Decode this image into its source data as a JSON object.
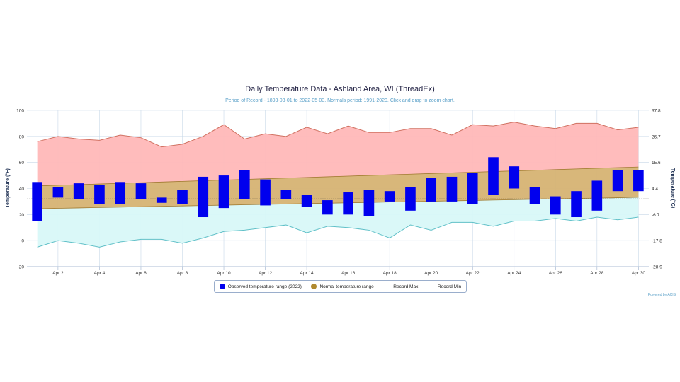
{
  "title": "Daily Temperature Data - Ashland Area, WI (ThreadEx)",
  "subtitle": "Period of Record - 1893-03-01 to 2022-05-03. Normals period: 1991-2020. Click and drag to zoom chart.",
  "credits": "Powered by ACIS",
  "legend": {
    "observed": "Observed temperature range (2022)",
    "normal": "Normal temperature range",
    "record_max": "Record Max",
    "record_min": "Record Min"
  },
  "colors": {
    "observed": "#0000ee",
    "normal_fill": "#d6b373",
    "normal_dot": "#b08a30",
    "record_max_fill": "#ffb8b8",
    "record_max_line": "#d07060",
    "record_min_fill": "#d8f8f8",
    "record_min_line": "#60c0c8",
    "grid": "#c8d8e8"
  },
  "chart_data": {
    "type": "area",
    "grid": true,
    "legend_position": "bottom",
    "x_tick_labels": [
      "Apr 2",
      "Apr 4",
      "Apr 6",
      "Apr 8",
      "Apr 10",
      "Apr 12",
      "Apr 14",
      "Apr 16",
      "Apr 18",
      "Apr 20",
      "Apr 22",
      "Apr 24",
      "Apr 26",
      "Apr 28",
      "Apr 30"
    ],
    "ylabel": "Temperature (°F)",
    "ylabel_right": "Temperature (°C)",
    "ylim": [
      -20,
      100
    ],
    "y_ticks": [
      -20,
      0,
      20,
      40,
      60,
      80,
      100
    ],
    "y_ticks_right": [
      "-28.9",
      "-17.8",
      "-6.7",
      "4.4",
      "15.6",
      "26.7",
      "37.8"
    ],
    "x": [
      1,
      2,
      3,
      4,
      5,
      6,
      7,
      8,
      9,
      10,
      11,
      12,
      13,
      14,
      15,
      16,
      17,
      18,
      19,
      20,
      21,
      22,
      23,
      24,
      25,
      26,
      27,
      28,
      29,
      30
    ],
    "series": [
      {
        "name": "Record Max",
        "values": [
          76,
          80,
          78,
          77,
          81,
          79,
          72,
          74,
          80,
          89,
          78,
          82,
          80,
          87,
          82,
          88,
          83,
          83,
          86,
          86,
          81,
          89,
          88,
          91,
          88,
          86,
          90,
          90,
          85,
          87
        ]
      },
      {
        "name": "Record Min",
        "values": [
          -5,
          0,
          -2,
          -5,
          -1,
          1,
          1,
          -2,
          2,
          7,
          8,
          10,
          12,
          6,
          11,
          10,
          8,
          2,
          12,
          8,
          14,
          14,
          11,
          15,
          15,
          17,
          15,
          18,
          16,
          18
        ]
      },
      {
        "name": "Normal temperature range",
        "low": [
          24.5,
          24.8,
          25.1,
          25.4,
          25.7,
          26.0,
          26.3,
          26.6,
          26.9,
          27.2,
          27.5,
          27.8,
          28.1,
          28.4,
          28.7,
          29.0,
          29.3,
          29.6,
          29.9,
          30.2,
          30.5,
          30.8,
          31.1,
          31.4,
          31.7,
          32.0,
          32.3,
          32.6,
          32.9,
          33.2
        ],
        "high": [
          42.0,
          42.5,
          43.0,
          43.5,
          44.0,
          44.5,
          45.0,
          45.5,
          46.0,
          46.5,
          47.0,
          47.5,
          48.0,
          48.5,
          49.0,
          49.5,
          50.0,
          50.5,
          51.0,
          51.5,
          52.0,
          52.5,
          53.0,
          53.5,
          54.0,
          54.5,
          55.0,
          55.5,
          56.0,
          56.5
        ]
      },
      {
        "name": "Observed temperature range (2022)",
        "low": [
          15,
          33,
          32,
          28,
          28,
          32,
          29,
          28,
          18,
          25,
          32,
          27,
          32,
          26,
          20,
          20,
          19,
          30,
          23,
          30,
          30,
          28,
          35,
          40,
          28,
          20,
          18,
          23,
          38,
          38
        ],
        "high": [
          45,
          41,
          44,
          43,
          45,
          44,
          33,
          39,
          49,
          50,
          54,
          47,
          39,
          35,
          31,
          37,
          39,
          38,
          41,
          48,
          49,
          52,
          64,
          57,
          41,
          34,
          38,
          46,
          54,
          54
        ]
      }
    ]
  }
}
